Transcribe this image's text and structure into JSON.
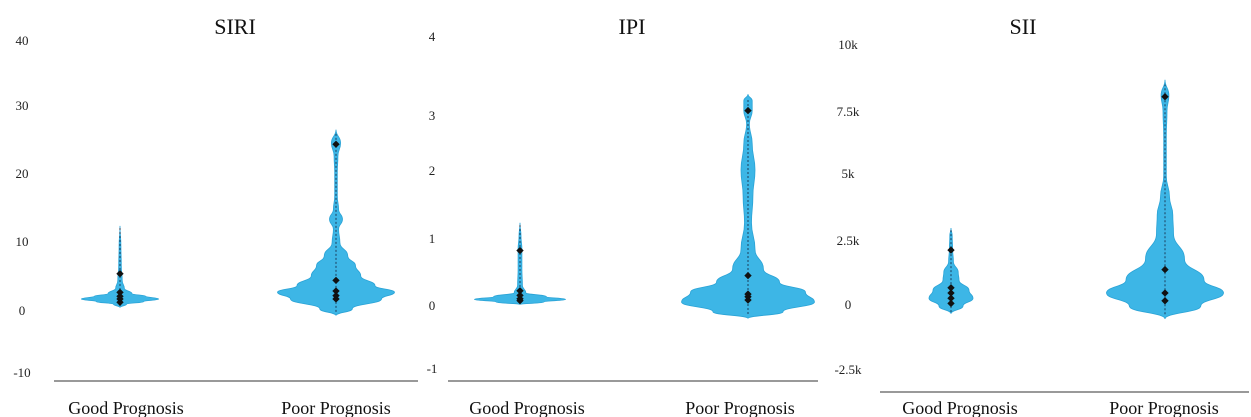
{
  "colors": {
    "violin_fill": "#3db6e6",
    "violin_stroke": "#2aa3d6",
    "points": "#111111"
  },
  "chart_data": [
    {
      "type": "violin",
      "title": "SIRI",
      "yticks": [
        "40",
        "30",
        "20",
        "10",
        "0",
        "-10"
      ],
      "ylim": [
        -10,
        40
      ],
      "categories": [
        "Good Prognosis",
        "Poor Prognosis"
      ],
      "groups": [
        {
          "category": "Good Prognosis",
          "profile": [
            [
              -0.3,
              0.0
            ],
            [
              0.2,
              0.15
            ],
            [
              0.6,
              0.55
            ],
            [
              1.0,
              0.9
            ],
            [
              1.4,
              0.6
            ],
            [
              1.8,
              0.28
            ],
            [
              2.6,
              0.1
            ],
            [
              3.8,
              0.05
            ],
            [
              6.0,
              0.03
            ],
            [
              9.0,
              0.02
            ],
            [
              12.0,
              0.0
            ]
          ],
          "points": [
            0.5,
            1.0,
            1.4,
            2.0,
            4.8
          ]
        },
        {
          "category": "Poor Prognosis",
          "profile": [
            [
              -1.5,
              0.0
            ],
            [
              -0.5,
              0.25
            ],
            [
              1.0,
              0.7
            ],
            [
              2.0,
              0.9
            ],
            [
              3.0,
              0.6
            ],
            [
              4.5,
              0.38
            ],
            [
              6.0,
              0.3
            ],
            [
              7.5,
              0.18
            ],
            [
              9.5,
              0.06
            ],
            [
              11.5,
              0.04
            ],
            [
              13.0,
              0.1
            ],
            [
              14.5,
              0.04
            ],
            [
              16.5,
              0.02
            ],
            [
              20.0,
              0.02
            ],
            [
              22.5,
              0.03
            ],
            [
              24.5,
              0.07
            ],
            [
              26.5,
              0.0
            ]
          ],
          "points": [
            1.0,
            1.5,
            2.2,
            3.8,
            24.3
          ]
        }
      ]
    },
    {
      "type": "violin",
      "title": "IPI",
      "yticks": [
        "4",
        "3",
        "2",
        "1",
        "0",
        "-1"
      ],
      "ylim": [
        -1,
        4
      ],
      "categories": [
        "Good Prognosis",
        "Poor Prognosis"
      ],
      "groups": [
        {
          "category": "Good Prognosis",
          "profile": [
            [
              -0.04,
              0.0
            ],
            [
              0.0,
              0.5
            ],
            [
              0.04,
              0.95
            ],
            [
              0.08,
              0.55
            ],
            [
              0.14,
              0.12
            ],
            [
              0.25,
              0.05
            ],
            [
              0.5,
              0.04
            ],
            [
              0.8,
              0.04
            ],
            [
              1.0,
              0.02
            ],
            [
              1.2,
              0.0
            ]
          ],
          "points": [
            0.02,
            0.05,
            0.1,
            0.17,
            0.78
          ]
        },
        {
          "category": "Poor Prognosis",
          "profile": [
            [
              -0.25,
              0.0
            ],
            [
              -0.15,
              0.5
            ],
            [
              0.0,
              0.95
            ],
            [
              0.15,
              0.82
            ],
            [
              0.3,
              0.45
            ],
            [
              0.5,
              0.22
            ],
            [
              0.8,
              0.1
            ],
            [
              1.2,
              0.05
            ],
            [
              1.6,
              0.07
            ],
            [
              2.0,
              0.1
            ],
            [
              2.4,
              0.06
            ],
            [
              2.7,
              0.02
            ],
            [
              2.9,
              0.06
            ],
            [
              3.05,
              0.06
            ],
            [
              3.15,
              0.0
            ]
          ],
          "points": [
            0.03,
            0.08,
            0.12,
            0.4,
            2.9
          ]
        }
      ]
    },
    {
      "type": "violin",
      "title": "SII",
      "yticks": [
        "10k",
        "7.5k",
        "5k",
        "2.5k",
        "0",
        "-2.5k"
      ],
      "ylim": [
        -2500,
        10000
      ],
      "categories": [
        "Good Prognosis",
        "Poor Prognosis"
      ],
      "groups": [
        {
          "category": "Good Prognosis",
          "profile": [
            [
              -300,
              0.0
            ],
            [
              0,
              0.3
            ],
            [
              300,
              0.55
            ],
            [
              600,
              0.45
            ],
            [
              1000,
              0.2
            ],
            [
              1300,
              0.18
            ],
            [
              1700,
              0.06
            ],
            [
              2200,
              0.04
            ],
            [
              2700,
              0.03
            ],
            [
              3000,
              0.0
            ]
          ],
          "points": [
            100,
            300,
            500,
            700,
            2150
          ]
        },
        {
          "category": "Poor Prognosis",
          "profile": [
            [
              -500,
              0.0
            ],
            [
              0,
              0.55
            ],
            [
              500,
              0.9
            ],
            [
              1000,
              0.6
            ],
            [
              1800,
              0.3
            ],
            [
              2800,
              0.13
            ],
            [
              3500,
              0.12
            ],
            [
              4200,
              0.07
            ],
            [
              5000,
              0.02
            ],
            [
              6500,
              0.02
            ],
            [
              7500,
              0.03
            ],
            [
              8100,
              0.06
            ],
            [
              8700,
              0.0
            ]
          ],
          "points": [
            200,
            500,
            1400,
            8050
          ]
        }
      ]
    }
  ]
}
